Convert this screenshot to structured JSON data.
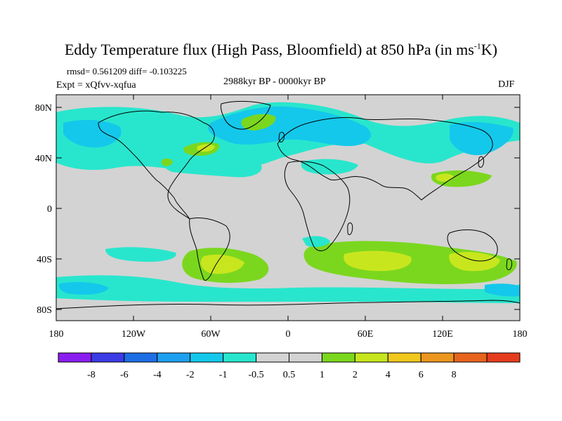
{
  "title": {
    "main": "Eddy Temperature flux (High Pass, Bloomfield) at 850 hPa (in ms",
    "sup": "-1",
    "tail": "K)"
  },
  "stats": "rmsd= 0.561209 diff= -0.103225",
  "experiment": "Expt = xQfvv-xqfua",
  "period": "2988kyr BP - 0000kyr BP",
  "season": "DJF",
  "axes": {
    "lat_ticks": [
      "80N",
      "40N",
      "0",
      "40S",
      "80S"
    ],
    "lon_ticks": [
      "180",
      "120W",
      "60W",
      "0",
      "60E",
      "120E",
      "180"
    ]
  },
  "colorbar": {
    "colors": [
      "#8a1ef0",
      "#3c3ce6",
      "#1e6ee6",
      "#1ea0f0",
      "#14c8eb",
      "#28e6cd",
      "#d3d3d3",
      "#d3d3d3",
      "#7bd71e",
      "#c8e61e",
      "#f0c81e",
      "#eb961e",
      "#e6641e",
      "#e63c1e"
    ],
    "labels": [
      "-8",
      "-6",
      "-4",
      "-2",
      "-1",
      "-0.5",
      "0.5",
      "1",
      "2",
      "4",
      "6",
      "8"
    ]
  }
}
